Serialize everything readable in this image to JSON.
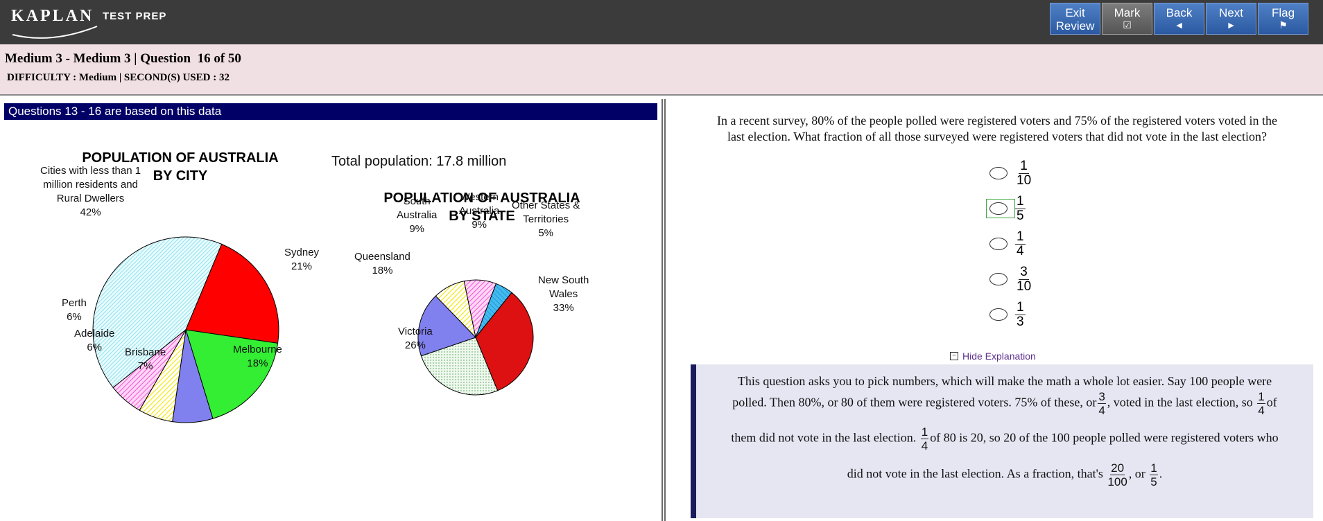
{
  "brand": {
    "name": "KAPLAN",
    "sub": "TEST PREP"
  },
  "nav": {
    "exit": {
      "line1": "Exit",
      "line2": "Review"
    },
    "mark": {
      "label": "Mark",
      "glyph": "☑"
    },
    "back": {
      "label": "Back",
      "glyph": "◄"
    },
    "next": {
      "label": "Next",
      "glyph": "►"
    },
    "flag": {
      "label": "Flag",
      "glyph": "⚑"
    }
  },
  "header": {
    "title": "Medium 3 - Medium 3 | Question  16 of 50",
    "meta": "DIFFICULTY : Medium | SECOND(S) USED : 32"
  },
  "data_panel": {
    "banner": "Questions 13 - 16 are based on this data",
    "total_population": "Total population: 17.8 million",
    "city_chart": {
      "title_line1": "POPULATION OF AUSTRALIA",
      "title_line2": "BY CITY",
      "labels": {
        "rural": [
          "Cities with less than 1",
          "million residents and",
          "Rural Dwellers",
          "42%"
        ],
        "sydney": [
          "Sydney",
          "21%"
        ],
        "melbourne": [
          "Melbourne",
          "18%"
        ],
        "brisbane": [
          "Brisbane",
          "7%"
        ],
        "adelaide": [
          "Adelaide",
          "6%"
        ],
        "perth": [
          "Perth",
          "6%"
        ]
      }
    },
    "state_chart": {
      "title_line1": "POPULATION OF AUSTRALIA",
      "title_line2": "BY STATE",
      "labels": {
        "south_australia": [
          "South",
          "Australia",
          "9%"
        ],
        "western_australia": [
          "Western",
          "Australia",
          "9%"
        ],
        "other": [
          "Other States &",
          "Territories",
          "5%"
        ],
        "nsw": [
          "New South",
          "Wales",
          "33%"
        ],
        "victoria": [
          "Victoria",
          "26%"
        ],
        "queensland": [
          "Queensland",
          "18%"
        ]
      }
    }
  },
  "chart_data": [
    {
      "type": "pie",
      "title": "POPULATION OF AUSTRALIA BY CITY",
      "categories": [
        "Cities with less than 1 million residents and Rural Dwellers",
        "Sydney",
        "Melbourne",
        "Brisbane",
        "Adelaide",
        "Perth"
      ],
      "values": [
        42,
        21,
        18,
        7,
        6,
        6
      ],
      "unit": "%",
      "colors": [
        "#c8f4fa",
        "#ff0000",
        "#33ee33",
        "#8080ee",
        "#ffff66",
        "#ff99ee"
      ]
    },
    {
      "type": "pie",
      "title": "POPULATION OF AUSTRALIA BY STATE",
      "categories": [
        "South Australia",
        "Western Australia",
        "Other States & Territories",
        "New South Wales",
        "Victoria",
        "Queensland"
      ],
      "values": [
        9,
        9,
        5,
        33,
        26,
        18
      ],
      "unit": "%",
      "colors": [
        "#ffff66",
        "#ff88dd",
        "#33bbee",
        "#dd1111",
        "#e6f5e6",
        "#8080ee"
      ]
    }
  ],
  "question": {
    "stem_line1": "In a recent survey, 80% of the people polled were registered voters and 75% of the registered voters voted in the",
    "stem_line2": "last election. What fraction of all those surveyed were registered voters that did not vote in the last election?",
    "choices": [
      {
        "num": "1",
        "den": "10",
        "selected": false
      },
      {
        "num": "1",
        "den": "5",
        "selected": true
      },
      {
        "num": "1",
        "den": "4",
        "selected": false
      },
      {
        "num": "3",
        "den": "10",
        "selected": false
      },
      {
        "num": "1",
        "den": "3",
        "selected": false
      }
    ],
    "hide_explanation": "Hide Explanation"
  },
  "explanation": {
    "line1": "This question asks you to pick numbers, which will make the math a whole lot easier. Say 100 people were",
    "line2_a": "polled. Then 80%, or 80 of them were registered voters. 75% of these, or",
    "line2_b": ", voted in the last election, so",
    "line2_c": "of",
    "line3_a": "them did not vote in the last election.",
    "line3_b": "of 80 is 20, so 20 of the 100 people polled were registered voters who",
    "line4_a": "did not vote in the last election. As a fraction, that's",
    "line4_b": ", or",
    "line4_c": ".",
    "frac_3_4": {
      "num": "3",
      "den": "4"
    },
    "frac_1_4": {
      "num": "1",
      "den": "4"
    },
    "frac_20_100": {
      "num": "20",
      "den": "100"
    },
    "frac_1_5": {
      "num": "1",
      "den": "5"
    }
  }
}
